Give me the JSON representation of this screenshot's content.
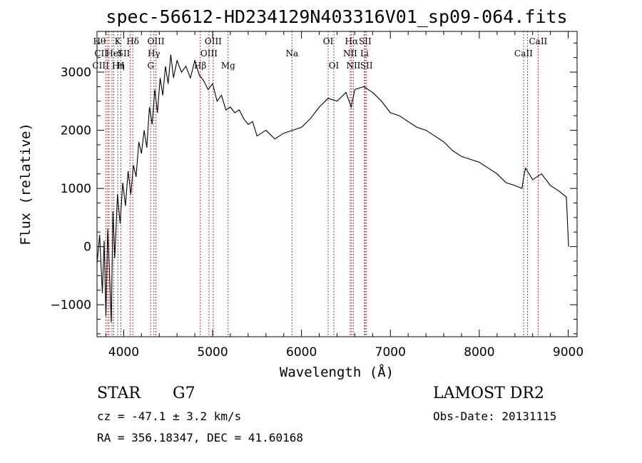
{
  "info": {
    "object_class": "STAR",
    "subclass": "G7",
    "cz": "cz = -47.1 ± 3.2 km/s",
    "coords": "RA = 356.18347, DEC =  41.60168",
    "survey": "LAMOST DR2",
    "obs_date": "Obs-Date: 20131115"
  },
  "chart_data": {
    "type": "line",
    "title": "spec-56612-HD234129N403316V01_sp09-064.fits",
    "xlabel": "Wavelength (Å)",
    "ylabel": "Flux (relative)",
    "xlim": [
      3700,
      9100
    ],
    "ylim": [
      -1550,
      3700
    ],
    "x_ticks": [
      4000,
      5000,
      6000,
      7000,
      8000,
      9000
    ],
    "y_ticks": [
      -1000,
      0,
      1000,
      2000,
      3000
    ],
    "grid": false,
    "line_color": "#000000",
    "marker_color": "#8b0000",
    "series": [
      {
        "x": [
          3700,
          3730,
          3760,
          3780,
          3800,
          3820,
          3840,
          3860,
          3880,
          3900,
          3930,
          3960,
          3990,
          4020,
          4050,
          4080,
          4110,
          4140,
          4170,
          4200,
          4230,
          4260,
          4290,
          4320,
          4350,
          4380,
          4410,
          4440,
          4470,
          4500,
          4530,
          4560,
          4600,
          4650,
          4700,
          4750,
          4800,
          4850,
          4900,
          4950,
          5000,
          5050,
          5100,
          5150,
          5200,
          5250,
          5300,
          5350,
          5400,
          5450,
          5500,
          5600,
          5700,
          5800,
          5900,
          6000,
          6100,
          6200,
          6300,
          6400,
          6500,
          6560,
          6600,
          6700,
          6800,
          6900,
          7000,
          7100,
          7200,
          7300,
          7400,
          7500,
          7600,
          7700,
          7800,
          7900,
          8000,
          8100,
          8200,
          8300,
          8400,
          8480,
          8500,
          8520,
          8600,
          8700,
          8800,
          8900,
          8980,
          9000,
          9005
        ],
        "y": [
          -300,
          200,
          -800,
          100,
          -1200,
          300,
          -400,
          -1300,
          600,
          -200,
          900,
          400,
          1100,
          700,
          1300,
          900,
          1400,
          1200,
          1800,
          1600,
          2000,
          1700,
          2400,
          2100,
          2700,
          2300,
          2900,
          2600,
          3100,
          2800,
          3300,
          2900,
          3200,
          3000,
          3100,
          2900,
          3200,
          2950,
          2850,
          2700,
          2800,
          2500,
          2600,
          2350,
          2400,
          2300,
          2350,
          2200,
          2100,
          2150,
          1900,
          2000,
          1850,
          1950,
          2000,
          2050,
          2200,
          2400,
          2550,
          2500,
          2650,
          2400,
          2700,
          2750,
          2650,
          2500,
          2300,
          2250,
          2150,
          2050,
          2000,
          1900,
          1800,
          1650,
          1550,
          1500,
          1450,
          1350,
          1250,
          1100,
          1050,
          1000,
          1200,
          1350,
          1150,
          1250,
          1050,
          950,
          850,
          150,
          0
        ]
      }
    ],
    "lines": [
      {
        "w": 3798,
        "label": "Hθ",
        "row": 0,
        "align": "end"
      },
      {
        "w": 3820,
        "label": "CII",
        "row": 1,
        "align": "end"
      },
      {
        "w": 3835,
        "label": "CIII",
        "row": 2,
        "align": "end"
      },
      {
        "w": 3869,
        "label": "Hη",
        "row": 2,
        "align": "start"
      },
      {
        "w": 3889,
        "label": "HeI",
        "row": 1,
        "align": "middle"
      },
      {
        "w": 3934,
        "label": "K",
        "row": 0,
        "align": "middle"
      },
      {
        "w": 3968,
        "label": "H",
        "row": 2,
        "align": "middle"
      },
      {
        "w": 4072,
        "label": "SII",
        "row": 1,
        "align": "end"
      },
      {
        "w": 4102,
        "label": "Hδ",
        "row": 0,
        "align": "middle"
      },
      {
        "w": 4304,
        "label": "G",
        "row": 2,
        "align": "middle"
      },
      {
        "w": 4340,
        "label": "Hγ",
        "row": 1,
        "align": "middle"
      },
      {
        "w": 4363,
        "label": "OIII",
        "row": 0,
        "align": "middle"
      },
      {
        "w": 4861,
        "label": "Hβ",
        "row": 2,
        "align": "middle"
      },
      {
        "w": 4959,
        "label": "OIII",
        "row": 1,
        "align": "middle"
      },
      {
        "w": 5007,
        "label": "OIII",
        "row": 0,
        "align": "middle"
      },
      {
        "w": 5175,
        "label": "Mg",
        "row": 2,
        "align": "middle"
      },
      {
        "w": 5893,
        "label": "Na",
        "row": 1,
        "align": "middle"
      },
      {
        "w": 6300,
        "label": "OI",
        "row": 0,
        "align": "middle"
      },
      {
        "w": 6364,
        "label": "OI",
        "row": 2,
        "align": "middle"
      },
      {
        "w": 6548,
        "label": "NII",
        "row": 1,
        "align": "middle"
      },
      {
        "w": 6563,
        "label": "Hα",
        "row": 0,
        "align": "middle"
      },
      {
        "w": 6584,
        "label": "NII",
        "row": 2,
        "align": "middle"
      },
      {
        "w": 6708,
        "label": "Li",
        "row": 1,
        "align": "middle"
      },
      {
        "w": 6716,
        "label": "SII",
        "row": 0,
        "align": "middle"
      },
      {
        "w": 6731,
        "label": "SII",
        "row": 2,
        "align": "middle"
      },
      {
        "w": 8498,
        "label": "CaII",
        "row": 1,
        "align": "middle"
      },
      {
        "w": 8542,
        "label": "",
        "row": 1,
        "align": "middle"
      },
      {
        "w": 8662,
        "label": "CaII",
        "row": 0,
        "align": "middle"
      }
    ]
  }
}
